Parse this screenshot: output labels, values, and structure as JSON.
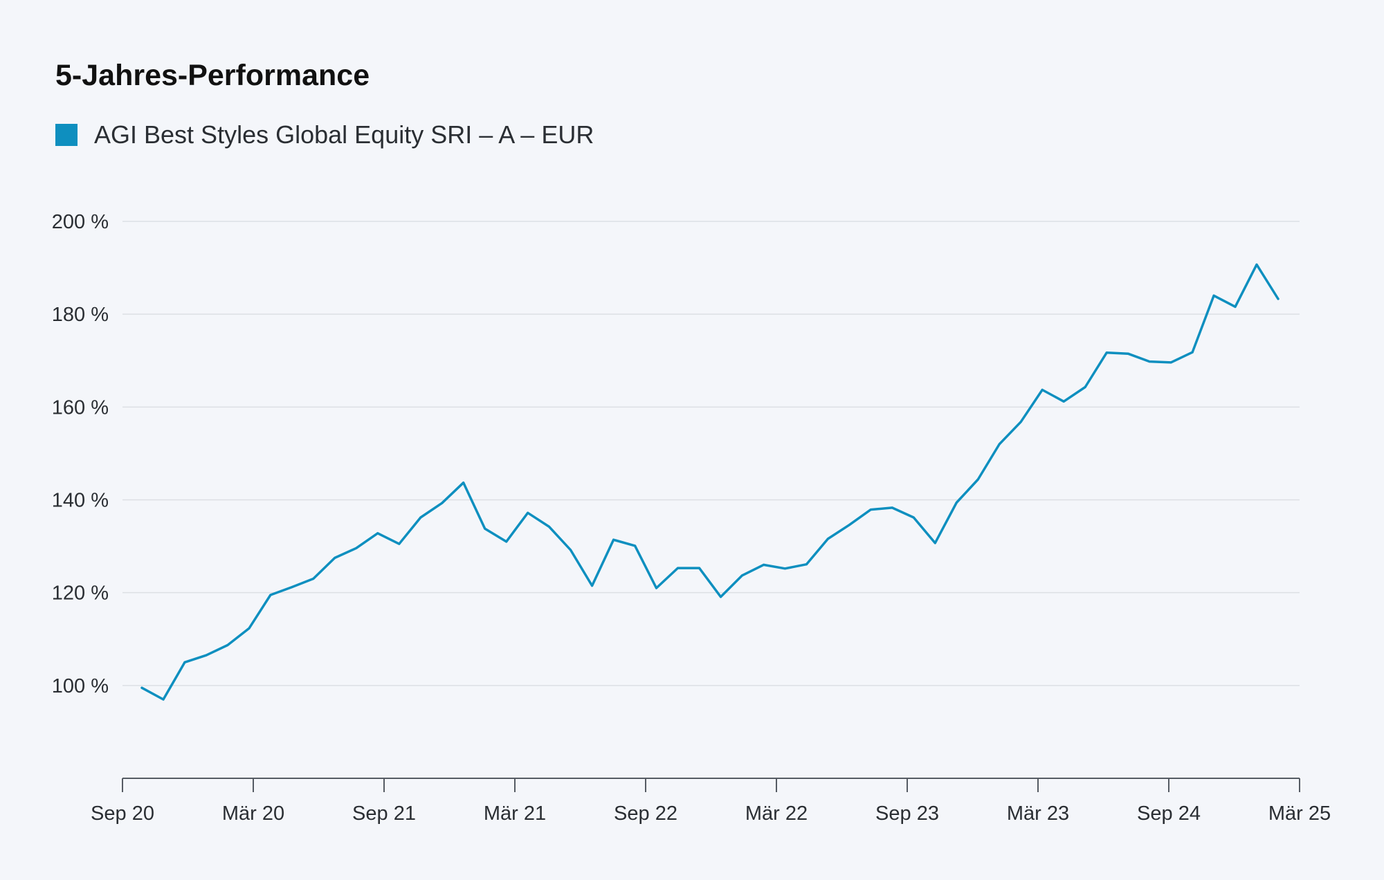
{
  "chart_data": {
    "type": "line",
    "title": "5-Jahres-Performance",
    "xlabel": "",
    "ylabel": "",
    "x_tick_labels": [
      "Sep 20",
      "Mär 20",
      "Sep 21",
      "Mär 21",
      "Sep 22",
      "Mär 22",
      "Sep 23",
      "Mär 23",
      "Sep 24",
      "Mär 25"
    ],
    "y_tick_labels": [
      "100 %",
      "120 %",
      "140 %",
      "160 %",
      "180 %",
      "200 %"
    ],
    "y_ticks": [
      100,
      120,
      140,
      160,
      180,
      200
    ],
    "ylim": [
      80,
      200
    ],
    "grid": true,
    "legend_position": "top-left",
    "series": [
      {
        "name": "AGI Best Styles Global Equity SRI – A – EUR",
        "color": "#0e8fbf",
        "values": [
          99.5,
          97.0,
          105.0,
          106.5,
          108.7,
          112.3,
          119.5,
          121.2,
          123.0,
          127.5,
          129.6,
          132.8,
          130.5,
          136.2,
          139.3,
          143.7,
          133.8,
          131.0,
          137.2,
          134.2,
          129.2,
          121.5,
          131.4,
          130.1,
          121.0,
          125.3,
          125.3,
          119.1,
          123.7,
          126.0,
          125.2,
          126.1,
          131.6,
          134.6,
          137.9,
          138.3,
          136.2,
          130.7,
          139.4,
          144.4,
          152.0,
          156.8,
          163.7,
          161.2,
          164.3,
          171.7,
          171.5,
          169.8,
          169.6,
          171.8,
          184.0,
          181.6,
          190.7,
          183.3
        ]
      }
    ]
  }
}
